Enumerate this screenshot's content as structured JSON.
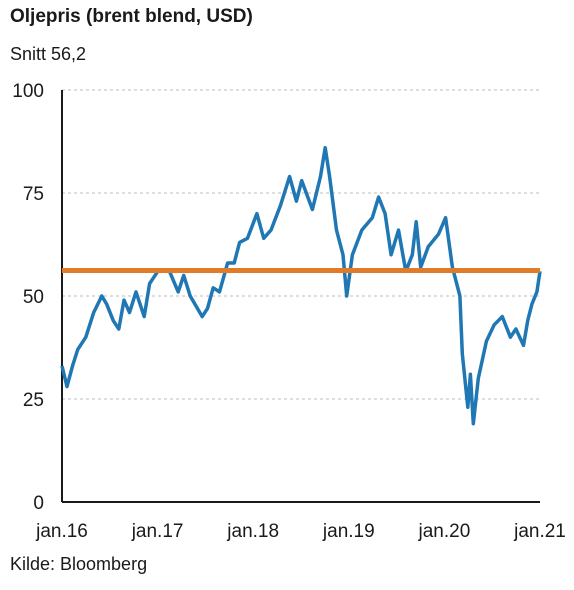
{
  "title": "Oljepris (brent blend, USD)",
  "subtitle": "Snitt 56,2",
  "source": "Kilde: Bloomberg",
  "colors": {
    "series": "#1f77b4",
    "average": "#e07b2a",
    "grid": "#bdbdbd",
    "axis": "#1a1a1a"
  },
  "chart_data": {
    "type": "line",
    "title": "Oljepris (brent blend, USD)",
    "xlabel": "",
    "ylabel": "",
    "xlim": [
      "2016-01-01",
      "2021-01-01"
    ],
    "ylim": [
      0,
      100
    ],
    "x_ticks": [
      "jan.16",
      "jan.17",
      "jan.18",
      "jan.19",
      "jan.20",
      "jan.21"
    ],
    "y_ticks": [
      0,
      25,
      50,
      75,
      100
    ],
    "grid": "horizontal dashed",
    "average": {
      "label": "Snitt 56,2",
      "value": 56.2
    },
    "series": [
      {
        "values": [
          {
            "x": "2016-01-01",
            "y": 33
          },
          {
            "x": "2016-01-20",
            "y": 28
          },
          {
            "x": "2016-02-10",
            "y": 33
          },
          {
            "x": "2016-03-01",
            "y": 37
          },
          {
            "x": "2016-04-01",
            "y": 40
          },
          {
            "x": "2016-05-01",
            "y": 46
          },
          {
            "x": "2016-06-01",
            "y": 50
          },
          {
            "x": "2016-06-20",
            "y": 48
          },
          {
            "x": "2016-07-15",
            "y": 44
          },
          {
            "x": "2016-08-05",
            "y": 42
          },
          {
            "x": "2016-08-25",
            "y": 49
          },
          {
            "x": "2016-09-15",
            "y": 46
          },
          {
            "x": "2016-10-10",
            "y": 51
          },
          {
            "x": "2016-11-10",
            "y": 45
          },
          {
            "x": "2016-12-01",
            "y": 53
          },
          {
            "x": "2017-01-01",
            "y": 56
          },
          {
            "x": "2017-02-15",
            "y": 56
          },
          {
            "x": "2017-03-20",
            "y": 51
          },
          {
            "x": "2017-04-10",
            "y": 55
          },
          {
            "x": "2017-05-05",
            "y": 50
          },
          {
            "x": "2017-06-20",
            "y": 45
          },
          {
            "x": "2017-07-10",
            "y": 47
          },
          {
            "x": "2017-08-01",
            "y": 52
          },
          {
            "x": "2017-08-25",
            "y": 51
          },
          {
            "x": "2017-09-25",
            "y": 58
          },
          {
            "x": "2017-10-20",
            "y": 58
          },
          {
            "x": "2017-11-10",
            "y": 63
          },
          {
            "x": "2017-12-10",
            "y": 64
          },
          {
            "x": "2018-01-15",
            "y": 70
          },
          {
            "x": "2018-02-10",
            "y": 64
          },
          {
            "x": "2018-03-10",
            "y": 66
          },
          {
            "x": "2018-04-15",
            "y": 72
          },
          {
            "x": "2018-05-20",
            "y": 79
          },
          {
            "x": "2018-06-15",
            "y": 73
          },
          {
            "x": "2018-07-05",
            "y": 78
          },
          {
            "x": "2018-08-15",
            "y": 71
          },
          {
            "x": "2018-09-15",
            "y": 79
          },
          {
            "x": "2018-10-03",
            "y": 86
          },
          {
            "x": "2018-10-20",
            "y": 79
          },
          {
            "x": "2018-11-15",
            "y": 66
          },
          {
            "x": "2018-12-10",
            "y": 60
          },
          {
            "x": "2018-12-24",
            "y": 50
          },
          {
            "x": "2019-01-15",
            "y": 60
          },
          {
            "x": "2019-02-20",
            "y": 66
          },
          {
            "x": "2019-04-01",
            "y": 69
          },
          {
            "x": "2019-04-25",
            "y": 74
          },
          {
            "x": "2019-05-20",
            "y": 70
          },
          {
            "x": "2019-06-12",
            "y": 60
          },
          {
            "x": "2019-07-10",
            "y": 66
          },
          {
            "x": "2019-08-07",
            "y": 56
          },
          {
            "x": "2019-09-01",
            "y": 60
          },
          {
            "x": "2019-09-16",
            "y": 68
          },
          {
            "x": "2019-10-03",
            "y": 57
          },
          {
            "x": "2019-11-01",
            "y": 62
          },
          {
            "x": "2019-12-10",
            "y": 65
          },
          {
            "x": "2020-01-06",
            "y": 69
          },
          {
            "x": "2020-02-01",
            "y": 57
          },
          {
            "x": "2020-03-01",
            "y": 50
          },
          {
            "x": "2020-03-10",
            "y": 36
          },
          {
            "x": "2020-03-31",
            "y": 23
          },
          {
            "x": "2020-04-10",
            "y": 31
          },
          {
            "x": "2020-04-21",
            "y": 19
          },
          {
            "x": "2020-05-10",
            "y": 30
          },
          {
            "x": "2020-06-10",
            "y": 39
          },
          {
            "x": "2020-07-10",
            "y": 43
          },
          {
            "x": "2020-08-10",
            "y": 45
          },
          {
            "x": "2020-09-10",
            "y": 40
          },
          {
            "x": "2020-10-01",
            "y": 42
          },
          {
            "x": "2020-10-30",
            "y": 38
          },
          {
            "x": "2020-11-15",
            "y": 44
          },
          {
            "x": "2020-12-01",
            "y": 48
          },
          {
            "x": "2020-12-20",
            "y": 51
          },
          {
            "x": "2021-01-01",
            "y": 56
          }
        ]
      }
    ]
  }
}
